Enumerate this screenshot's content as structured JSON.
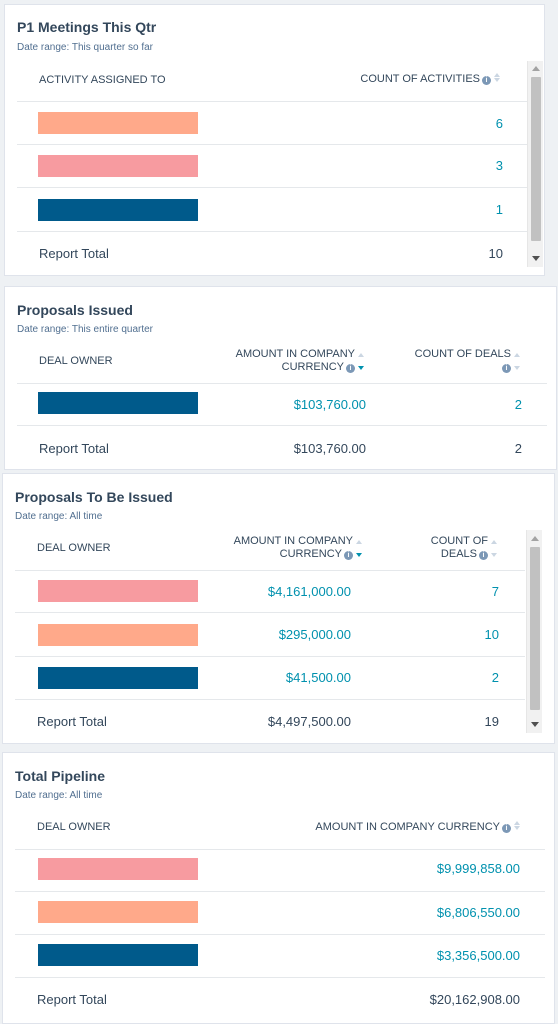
{
  "colors": {
    "orange": "#ffa98a",
    "pink": "#f79ba0",
    "navy": "#005a8b",
    "link": "#0091ae"
  },
  "report_total_label": "Report Total",
  "p1_meetings": {
    "title": "P1 Meetings This Qtr",
    "date_range": "Date range: This quarter so far",
    "col_owner": "ACTIVITY ASSIGNED TO",
    "col_count": "COUNT OF ACTIVITIES",
    "rows": [
      {
        "bar_color": "orange",
        "count": "6"
      },
      {
        "bar_color": "pink",
        "count": "3"
      },
      {
        "bar_color": "navy",
        "count": "1"
      }
    ],
    "total_count": "10"
  },
  "proposals_issued": {
    "title": "Proposals Issued",
    "date_range": "Date range: This entire quarter",
    "col_owner": "DEAL OWNER",
    "col_amount_1": "AMOUNT IN COMPANY",
    "col_amount_2": "CURRENCY",
    "col_count": "COUNT OF DEALS",
    "rows": [
      {
        "bar_color": "navy",
        "amount": "$103,760.00",
        "count": "2"
      }
    ],
    "total_amount": "$103,760.00",
    "total_count": "2"
  },
  "proposals_to_be_issued": {
    "title": "Proposals To Be Issued",
    "date_range": "Date range: All time",
    "col_owner": "DEAL OWNER",
    "col_amount_1": "AMOUNT IN COMPANY",
    "col_amount_2": "CURRENCY",
    "col_count_1": "COUNT OF",
    "col_count_2": "DEALS",
    "rows": [
      {
        "bar_color": "pink",
        "amount": "$4,161,000.00",
        "count": "7"
      },
      {
        "bar_color": "orange",
        "amount": "$295,000.00",
        "count": "10"
      },
      {
        "bar_color": "navy",
        "amount": "$41,500.00",
        "count": "2"
      }
    ],
    "total_amount": "$4,497,500.00",
    "total_count": "19"
  },
  "total_pipeline": {
    "title": "Total Pipeline",
    "date_range": "Date range: All time",
    "col_owner": "DEAL OWNER",
    "col_amount": "AMOUNT IN COMPANY CURRENCY",
    "rows": [
      {
        "bar_color": "pink",
        "amount": "$9,999,858.00"
      },
      {
        "bar_color": "orange",
        "amount": "$6,806,550.00"
      },
      {
        "bar_color": "navy",
        "amount": "$3,356,500.00"
      }
    ],
    "total_amount": "$20,162,908.00"
  },
  "icons": {
    "info": "info-icon",
    "sort": "sort-icon",
    "scroll_up": "scroll-up-arrow-icon",
    "scroll_down": "scroll-down-arrow-icon"
  }
}
